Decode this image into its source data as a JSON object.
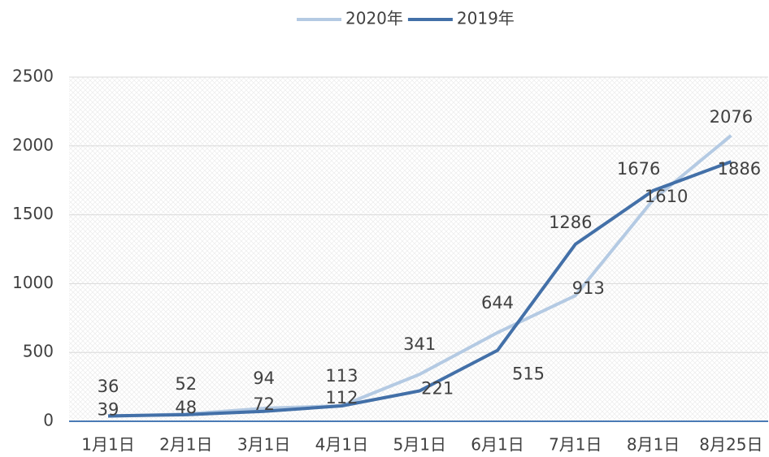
{
  "chart_data": {
    "type": "line",
    "categories": [
      "1月1日",
      "2月1日",
      "3月1日",
      "4月1日",
      "5月1日",
      "6月1日",
      "7月1日",
      "8月1日",
      "8月25日"
    ],
    "series": [
      {
        "name": "2020年",
        "color": "#b4cae3",
        "values": [
          36,
          52,
          94,
          113,
          341,
          644,
          913,
          1610,
          2076
        ]
      },
      {
        "name": "2019年",
        "color": "#4370a8",
        "values": [
          39,
          48,
          72,
          112,
          221,
          515,
          1286,
          1676,
          1886
        ]
      }
    ],
    "ylim": [
      0,
      2500
    ],
    "yticks": [
      0,
      500,
      1000,
      1500,
      2000,
      2500
    ],
    "grid": true,
    "legend": "top"
  }
}
